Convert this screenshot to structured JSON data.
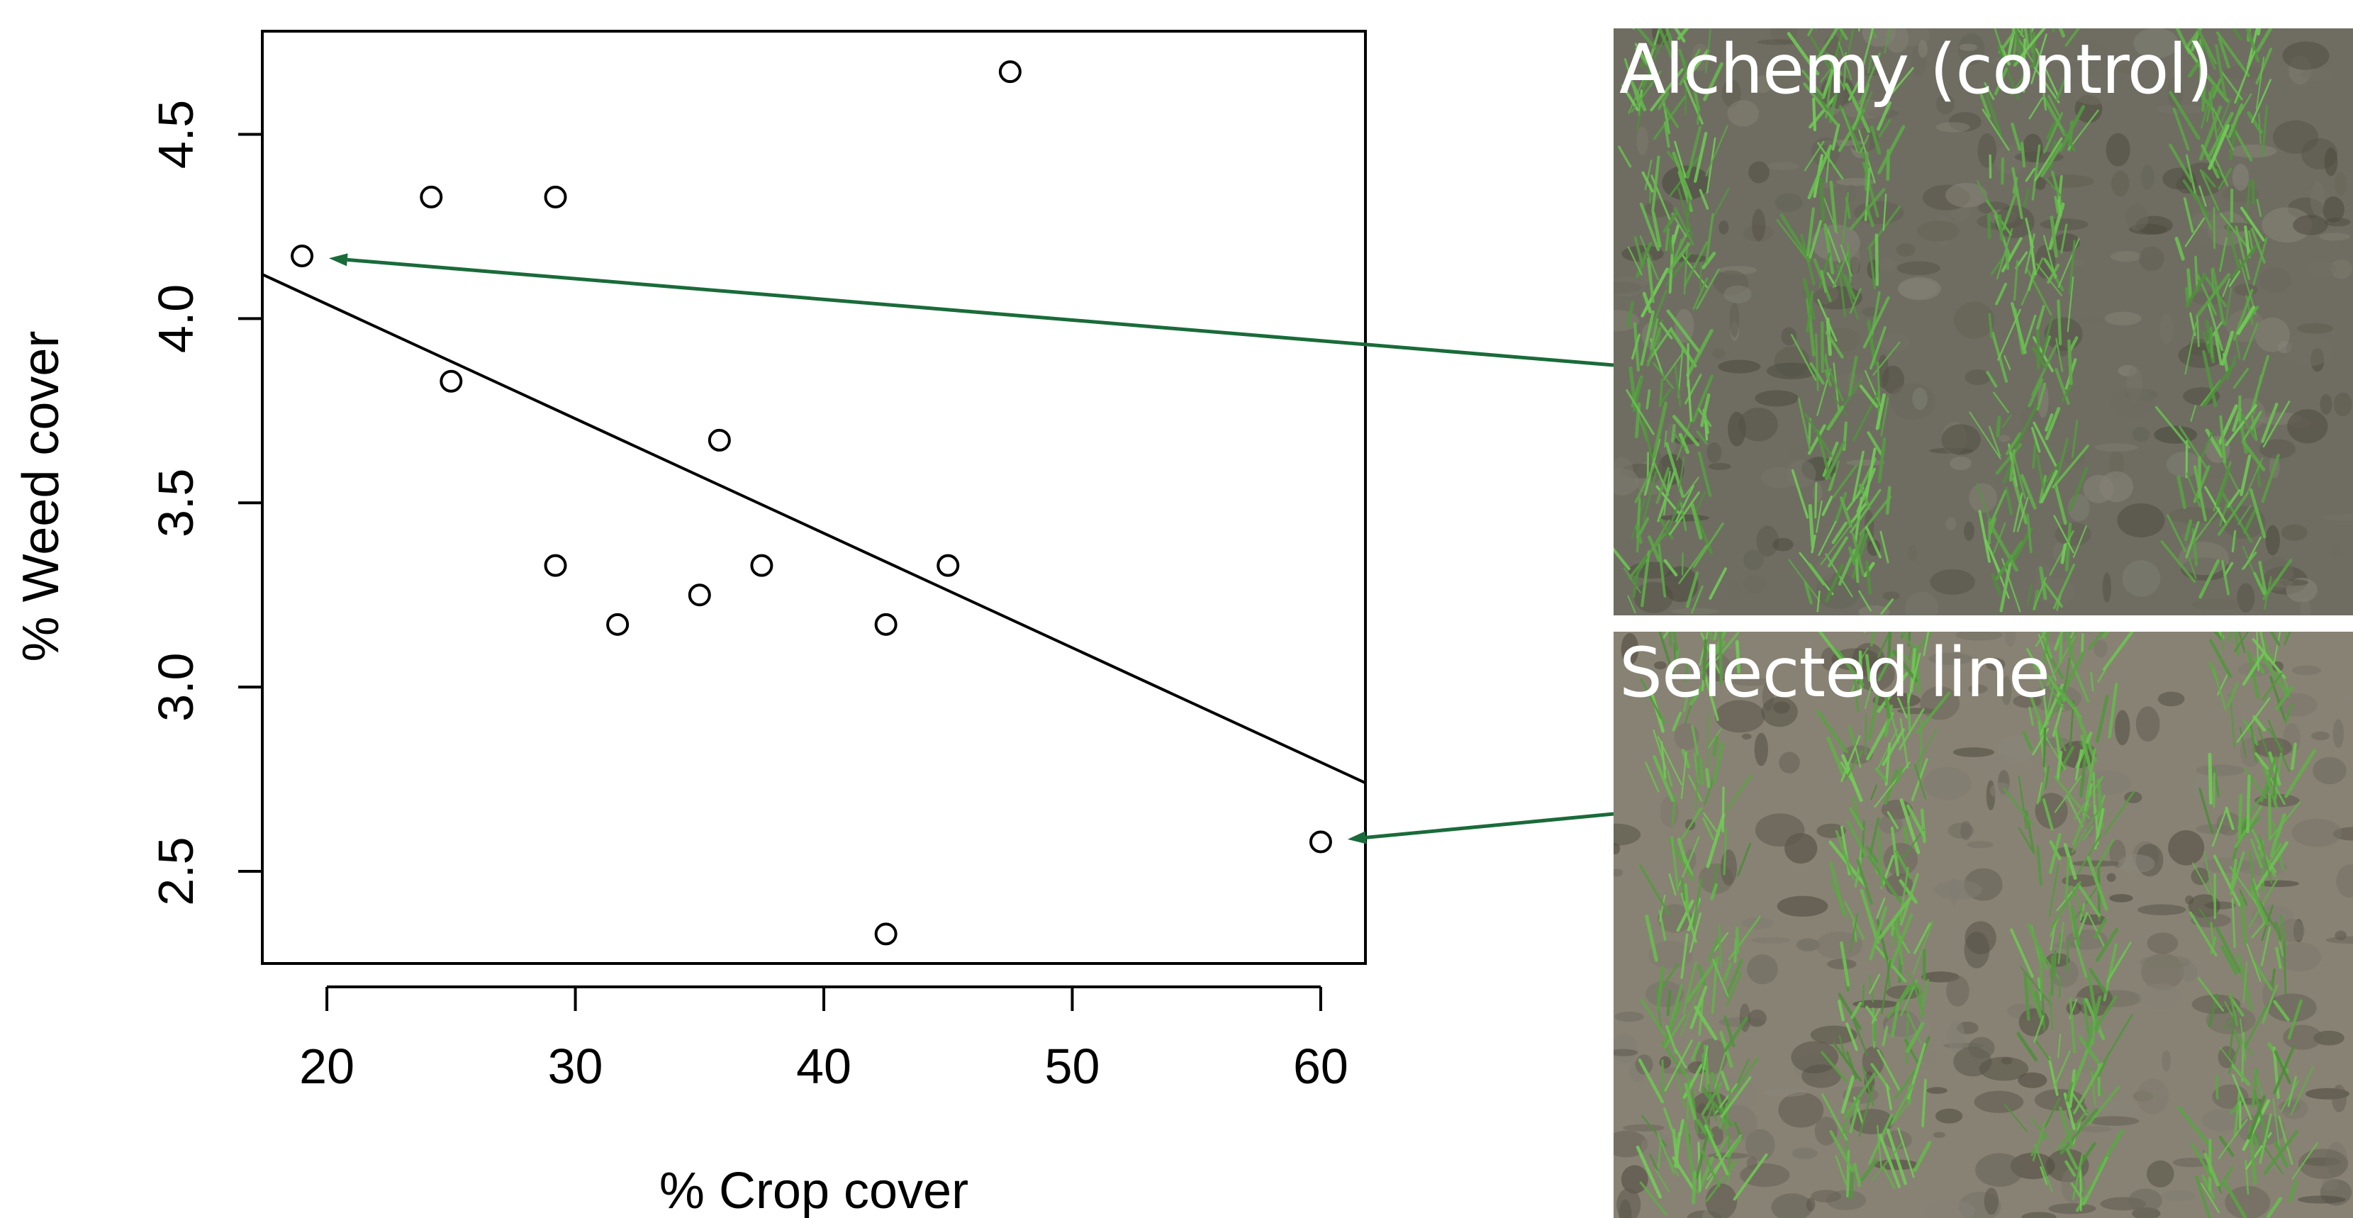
{
  "chart_data": {
    "type": "scatter",
    "xlabel": "% Crop cover",
    "ylabel": "% Weed cover",
    "xlim": [
      17.4,
      61.8
    ],
    "ylim": [
      2.25,
      4.78
    ],
    "xticks": [
      20,
      30,
      40,
      50,
      60
    ],
    "yticks": [
      2.5,
      3.0,
      3.5,
      4.0,
      4.5
    ],
    "xtick_labels": [
      "20",
      "30",
      "40",
      "50",
      "60"
    ],
    "ytick_labels": [
      "2.5",
      "3.0",
      "3.5",
      "4.0",
      "4.5"
    ],
    "points": [
      {
        "x": 19.0,
        "y": 4.17
      },
      {
        "x": 24.2,
        "y": 4.33
      },
      {
        "x": 25.0,
        "y": 3.83
      },
      {
        "x": 29.2,
        "y": 4.33
      },
      {
        "x": 29.2,
        "y": 3.33
      },
      {
        "x": 31.7,
        "y": 3.17
      },
      {
        "x": 35.0,
        "y": 3.25
      },
      {
        "x": 35.8,
        "y": 3.67
      },
      {
        "x": 37.5,
        "y": 3.33
      },
      {
        "x": 42.5,
        "y": 3.17
      },
      {
        "x": 42.5,
        "y": 2.33
      },
      {
        "x": 45.0,
        "y": 3.33
      },
      {
        "x": 47.5,
        "y": 4.67
      },
      {
        "x": 60.0,
        "y": 2.58
      }
    ],
    "fit_line": {
      "x1": 17.4,
      "y1": 4.12,
      "x2": 61.8,
      "y2": 2.74
    },
    "grid": false,
    "point_color": "#000000",
    "annotation_arrow_color": "#1a6b3a",
    "annotations": [
      {
        "target_point": 0,
        "photo": "control",
        "text": "Alchemy (control)"
      },
      {
        "target_point": 13,
        "photo": "selected",
        "text": "Selected line"
      }
    ]
  },
  "photos": {
    "control": {
      "label": "Alchemy (control)",
      "soil_color": "#6f6a62",
      "crop_color": "#7aa86a"
    },
    "selected": {
      "label": "Selected line",
      "soil_color": "#8a8176",
      "crop_color": "#6fa05c"
    }
  }
}
